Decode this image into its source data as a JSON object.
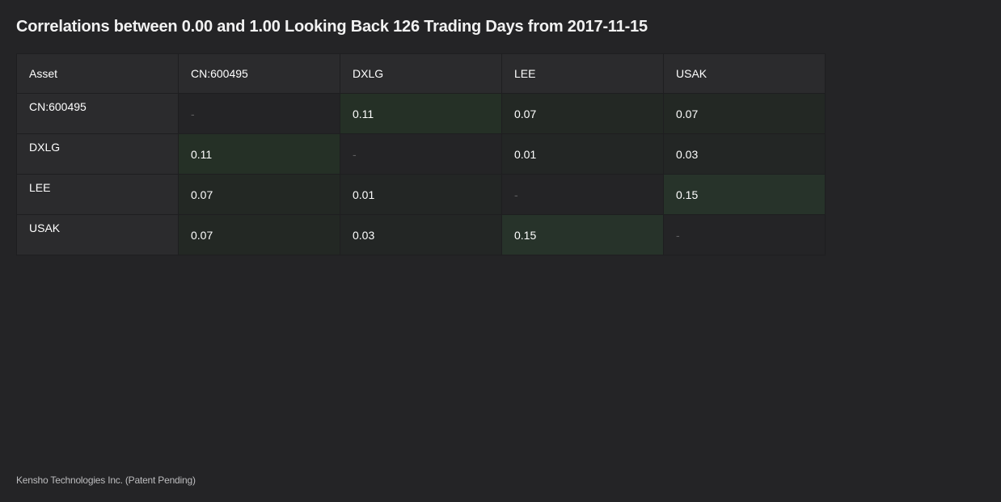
{
  "page": {
    "title": "Correlations between 0.00 and 1.00 Looking Back 126 Trading Days from 2017-11-15",
    "footer": "Kensho Technologies Inc. (Patent Pending)"
  },
  "table": {
    "corner_label": "Asset",
    "columns": [
      "CN:600495",
      "DXLG",
      "LEE",
      "USAK"
    ],
    "rows": [
      {
        "label": "CN:600495",
        "cells": [
          "-",
          "0.11",
          "0.07",
          "0.07"
        ]
      },
      {
        "label": "DXLG",
        "cells": [
          "0.11",
          "-",
          "0.01",
          "0.03"
        ]
      },
      {
        "label": "LEE",
        "cells": [
          "0.07",
          "0.01",
          "-",
          "0.15"
        ]
      },
      {
        "label": "USAK",
        "cells": [
          "0.07",
          "0.03",
          "0.15",
          "-"
        ]
      }
    ]
  },
  "colors": {
    "background": "#242426",
    "header_bg": "#2b2b2d",
    "highlight_low": "#232824",
    "highlight_mid": "#253026",
    "highlight_high": "#27332a",
    "empty_text": "#5e5e60"
  }
}
